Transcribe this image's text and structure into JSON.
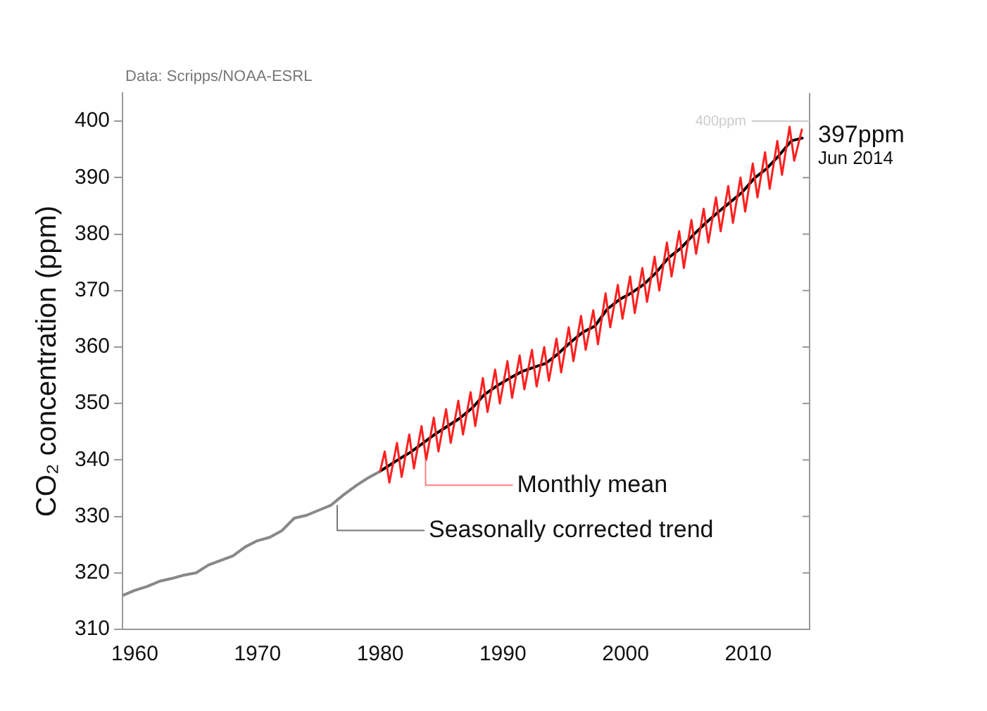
{
  "chart_data": {
    "type": "line",
    "ylabel": "CO₂ concentration (ppm)",
    "xlim": [
      1959,
      2015
    ],
    "ylim": [
      310,
      405
    ],
    "xticks": [
      1960,
      1970,
      1980,
      1990,
      2000,
      2010
    ],
    "yticks": [
      310,
      320,
      330,
      340,
      350,
      360,
      370,
      380,
      390,
      400
    ],
    "grid": false,
    "legend": false,
    "marker": "none",
    "line_style": "solid",
    "series": [
      {
        "color": "#ff2020",
        "x": [
          1980.0,
          1980.37,
          1980.75,
          1981.37,
          1981.75,
          1982.37,
          1982.75,
          1983.37,
          1983.75,
          1984.37,
          1984.75,
          1985.37,
          1985.75,
          1986.37,
          1986.75,
          1987.37,
          1987.75,
          1988.37,
          1988.75,
          1989.37,
          1989.75,
          1990.37,
          1990.75,
          1991.37,
          1991.75,
          1992.37,
          1992.75,
          1993.37,
          1993.75,
          1994.37,
          1994.75,
          1995.37,
          1995.75,
          1996.37,
          1996.75,
          1997.37,
          1997.75,
          1998.37,
          1998.75,
          1999.37,
          1999.75,
          2000.37,
          2000.75,
          2001.37,
          2001.75,
          2002.37,
          2002.75,
          2003.37,
          2003.75,
          2004.37,
          2004.75,
          2005.37,
          2005.75,
          2006.37,
          2006.75,
          2007.37,
          2007.75,
          2008.37,
          2008.75,
          2009.37,
          2009.75,
          2010.37,
          2010.75,
          2011.37,
          2011.75,
          2012.37,
          2012.75,
          2013.37,
          2013.75,
          2014.37
        ],
        "values": [
          338,
          341.5,
          336,
          343,
          337,
          344.5,
          338.5,
          346,
          340,
          347.5,
          341.5,
          349,
          343,
          350.5,
          344.5,
          352,
          346,
          354.5,
          348.5,
          356,
          350,
          357.5,
          351,
          358.5,
          352.5,
          359.5,
          353,
          360,
          354,
          361.5,
          355.5,
          363.5,
          357.5,
          365.5,
          359.5,
          366.5,
          360.5,
          369.5,
          363.5,
          371,
          365,
          372.5,
          366,
          374,
          368,
          376,
          370,
          378.5,
          372.5,
          380.5,
          374,
          382.5,
          376.5,
          384.5,
          378.5,
          386.5,
          380.5,
          388.5,
          382,
          390,
          384,
          392.5,
          386.5,
          394.5,
          388,
          396.5,
          390.5,
          399,
          393,
          398.5
        ]
      },
      {
        "color": "#888888",
        "x": [
          1959,
          1960,
          1961,
          1962,
          1963,
          1964,
          1965,
          1966,
          1967,
          1968,
          1969,
          1970,
          1971,
          1972,
          1973,
          1974,
          1975,
          1976,
          1977,
          1978,
          1979,
          1980
        ],
        "values": [
          316,
          316.9,
          317.6,
          318.5,
          319,
          319.6,
          320,
          321.4,
          322.2,
          323,
          324.6,
          325.7,
          326.3,
          327.5,
          329.7,
          330.2,
          331.1,
          332,
          333.8,
          335.4,
          336.8,
          338
        ]
      },
      {
        "color": "#000000",
        "x": [
          1980,
          1980.5,
          1981.5,
          1982.5,
          1983.5,
          1984.5,
          1985.5,
          1986.5,
          1987.5,
          1988.5,
          1989.5,
          1990.5,
          1991.5,
          1992.5,
          1993.5,
          1994.5,
          1995.5,
          1996.5,
          1997.5,
          1998.5,
          1999.5,
          2000.5,
          2001.5,
          2002.5,
          2003.5,
          2004.5,
          2005.5,
          2006.5,
          2007.5,
          2008.5,
          2009.5,
          2010.5,
          2011.5,
          2012.5,
          2013.5,
          2014.4
        ],
        "values": [
          338,
          338.7,
          340.1,
          341.4,
          343,
          344.6,
          346,
          347.4,
          349.2,
          351.6,
          353.1,
          354.4,
          355.6,
          356.4,
          357.1,
          358.8,
          360.8,
          362.6,
          363.7,
          366.7,
          368.4,
          369.6,
          371.1,
          373.2,
          375.8,
          377.5,
          379.8,
          381.9,
          383.8,
          385.6,
          387.4,
          389.9,
          391.6,
          393.9,
          396.5,
          397
        ]
      }
    ],
    "ref_lines": [
      {
        "axis": "y",
        "value": 400,
        "label": "400ppm",
        "color": "#cccccc"
      }
    ],
    "annotations": [
      "Data: Scripps/NOAA-ESRL",
      {
        "text": "Monthly mean",
        "x": 1983.7,
        "y": 340
      },
      {
        "text": "Seasonally corrected trend",
        "x": 1976.5,
        "y": 332
      },
      {
        "text": "397ppm",
        "x": 2014.4,
        "y": 397
      },
      "Jun 2014"
    ]
  }
}
